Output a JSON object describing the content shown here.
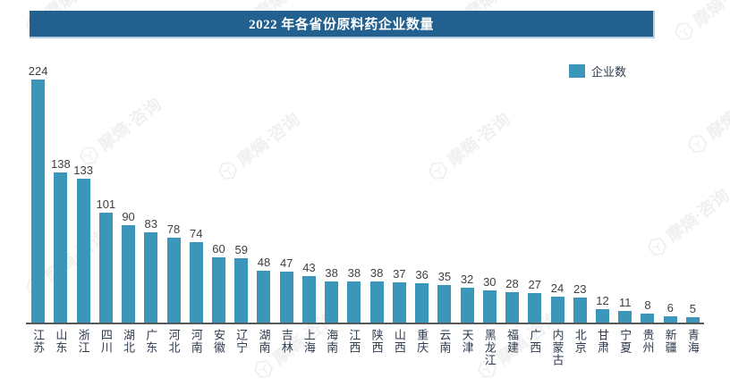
{
  "title": "2022 年各省份原料药企业数量",
  "legend": {
    "label": "企业数"
  },
  "watermark": {
    "text": "摩熵·咨询"
  },
  "colors": {
    "bar": "#3b97ba",
    "title_bg": "#22618f",
    "title_text": "#ffffff",
    "title_edge": "#b9cfdf",
    "axis_line": "#595959",
    "value_text": "#404040",
    "label_text": "#2f3b4e",
    "watermark": "#e9e9e9"
  },
  "chart_data": {
    "type": "bar",
    "title": "2022 年各省份原料药企业数量",
    "legend_entries": [
      "企业数"
    ],
    "legend_position": "top-right",
    "grid": false,
    "value_labels_shown": true,
    "x_label_orientation": "vertical",
    "xlabel": "",
    "ylabel": "",
    "ylim": [
      0,
      240
    ],
    "categories": [
      "江苏",
      "山东",
      "浙江",
      "四川",
      "湖北",
      "广东",
      "河北",
      "河南",
      "安徽",
      "辽宁",
      "湖南",
      "吉林",
      "上海",
      "海南",
      "江西",
      "陕西",
      "山西",
      "重庆",
      "云南",
      "天津",
      "黑龙江",
      "福建",
      "广西",
      "内蒙古",
      "北京",
      "甘肃",
      "宁夏",
      "贵州",
      "新疆",
      "青海"
    ],
    "values": [
      224,
      138,
      133,
      101,
      90,
      83,
      78,
      74,
      60,
      59,
      48,
      47,
      43,
      38,
      38,
      38,
      37,
      36,
      35,
      32,
      30,
      28,
      27,
      24,
      23,
      12,
      11,
      8,
      6,
      5
    ]
  }
}
